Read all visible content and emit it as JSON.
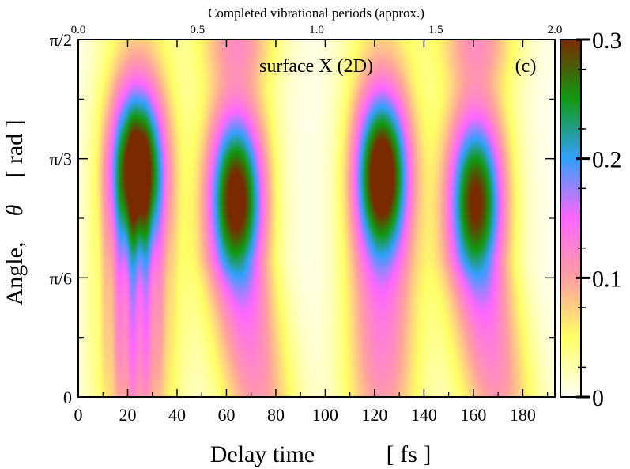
{
  "chart_data": {
    "type": "heatmap",
    "title": "",
    "panel_label": "(c)",
    "annotation": "surface X (2D)",
    "xlabel": "Delay time",
    "xunit": "[ fs ]",
    "ylabel_main": "Angle,",
    "ylabel_symbol": "θ",
    "ylabel_unit": "[ rad ]",
    "top_xlabel": "Completed vibrational periods (approx.)",
    "xlim": [
      0,
      193
    ],
    "ylim": [
      0,
      1.5708
    ],
    "x_ticks": [
      {
        "value": 0,
        "label": "0"
      },
      {
        "value": 20,
        "label": "20"
      },
      {
        "value": 40,
        "label": "40"
      },
      {
        "value": 60,
        "label": "60"
      },
      {
        "value": 80,
        "label": "80"
      },
      {
        "value": 100,
        "label": "100"
      },
      {
        "value": 120,
        "label": "120"
      },
      {
        "value": 140,
        "label": "140"
      },
      {
        "value": 160,
        "label": "160"
      },
      {
        "value": 180,
        "label": "180"
      }
    ],
    "y_ticks": [
      {
        "value": 0,
        "label": "0"
      },
      {
        "value": 0.5236,
        "label": "π/6"
      },
      {
        "value": 1.0472,
        "label": "π/3"
      },
      {
        "value": 1.5708,
        "label": "π/2"
      }
    ],
    "top_ticks": [
      {
        "value": 0.0,
        "label": "0.0"
      },
      {
        "value": 0.5,
        "label": "0.5"
      },
      {
        "value": 1.0,
        "label": "1.0"
      },
      {
        "value": 1.5,
        "label": "1.5"
      },
      {
        "value": 2.0,
        "label": "2.0"
      }
    ],
    "top_range": [
      0,
      2.0
    ],
    "colorbar": {
      "range": [
        0,
        0.3
      ],
      "ticks": [
        {
          "value": 0,
          "label": "0"
        },
        {
          "value": 0.1,
          "label": "0.1"
        },
        {
          "value": 0.2,
          "label": "0.2"
        },
        {
          "value": 0.3,
          "label": "0.3"
        }
      ],
      "colors": [
        "#fffff2",
        "#ffff66",
        "#ffa0a0",
        "#ff66ff",
        "#33a0ff",
        "#119911",
        "#7a2a00"
      ]
    },
    "features": [
      {
        "x": 24,
        "y": 1.0,
        "peak": 0.26
      },
      {
        "x": 64,
        "y": 0.88,
        "peak": 0.22
      },
      {
        "x": 123,
        "y": 0.98,
        "peak": 0.25
      },
      {
        "x": 161,
        "y": 0.87,
        "peak": 0.2
      }
    ]
  }
}
